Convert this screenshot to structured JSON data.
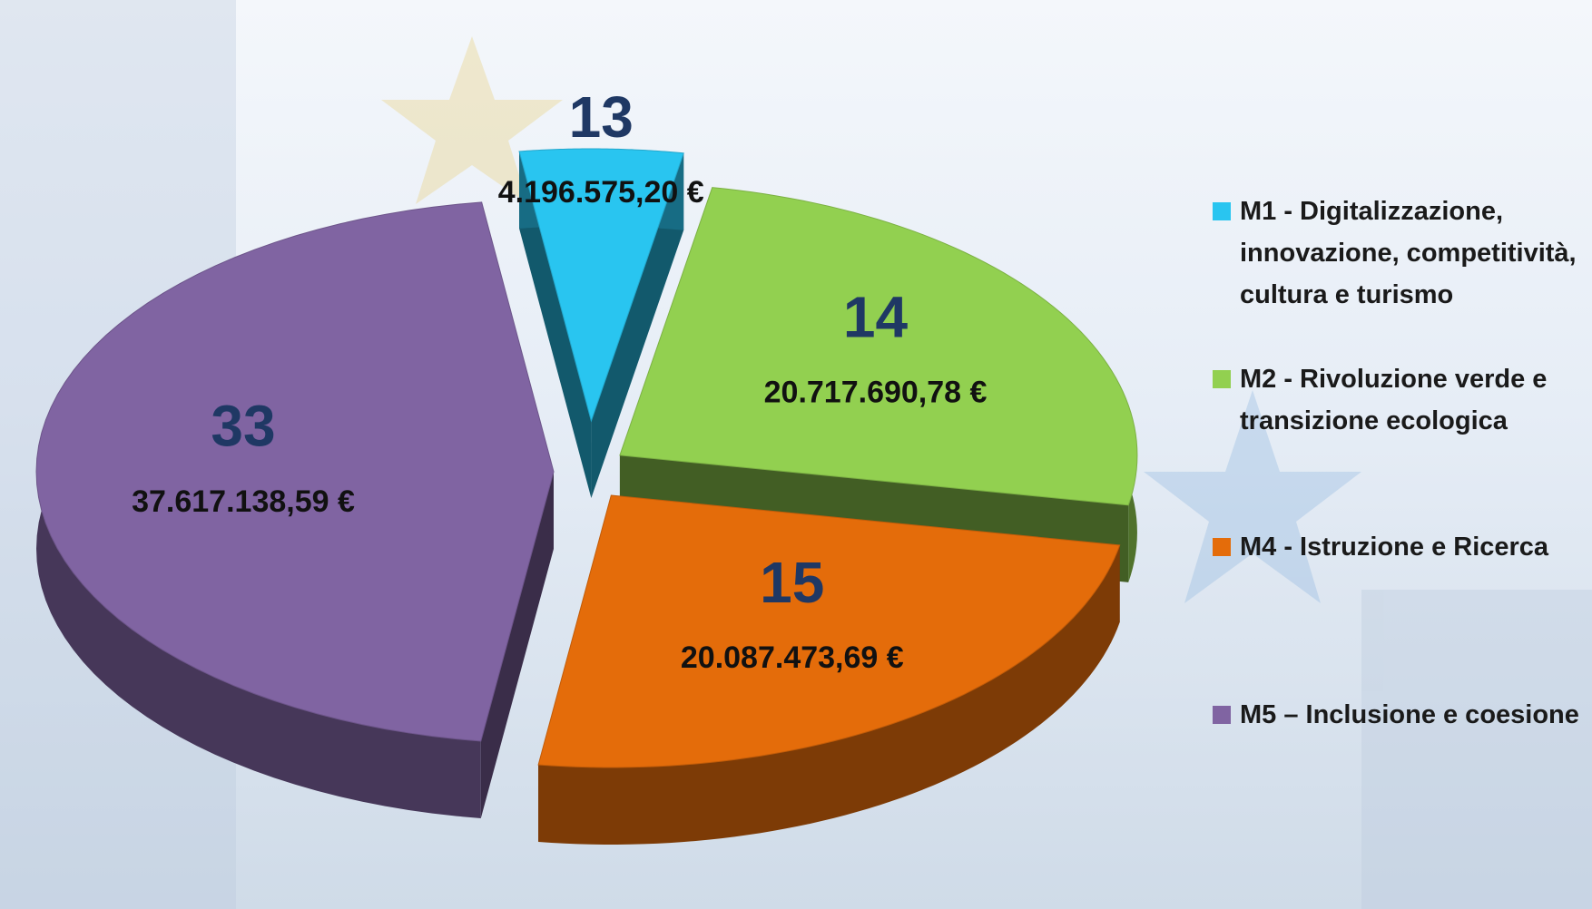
{
  "chart_data": {
    "type": "pie",
    "categories": [
      "M1 - Digitalizzazione, innovazione, competitività, cultura e turismo",
      "M2 - Rivoluzione verde e transizione ecologica",
      "M4 - Istruzione e Ricerca",
      "M5  – Inclusione e coesione"
    ],
    "values": [
      4196575.2,
      20717690.78,
      20087473.69,
      37617138.59
    ],
    "value_labels": [
      "4.196.575,20 €",
      "20.717.690,78 €",
      "20.087.473,69 €",
      "37.617.138,59 €"
    ],
    "counts": [
      13,
      14,
      15,
      33
    ],
    "colors": [
      "#29c5f0",
      "#92d050",
      "#e46c0a",
      "#8064a2"
    ],
    "legend": "right"
  }
}
